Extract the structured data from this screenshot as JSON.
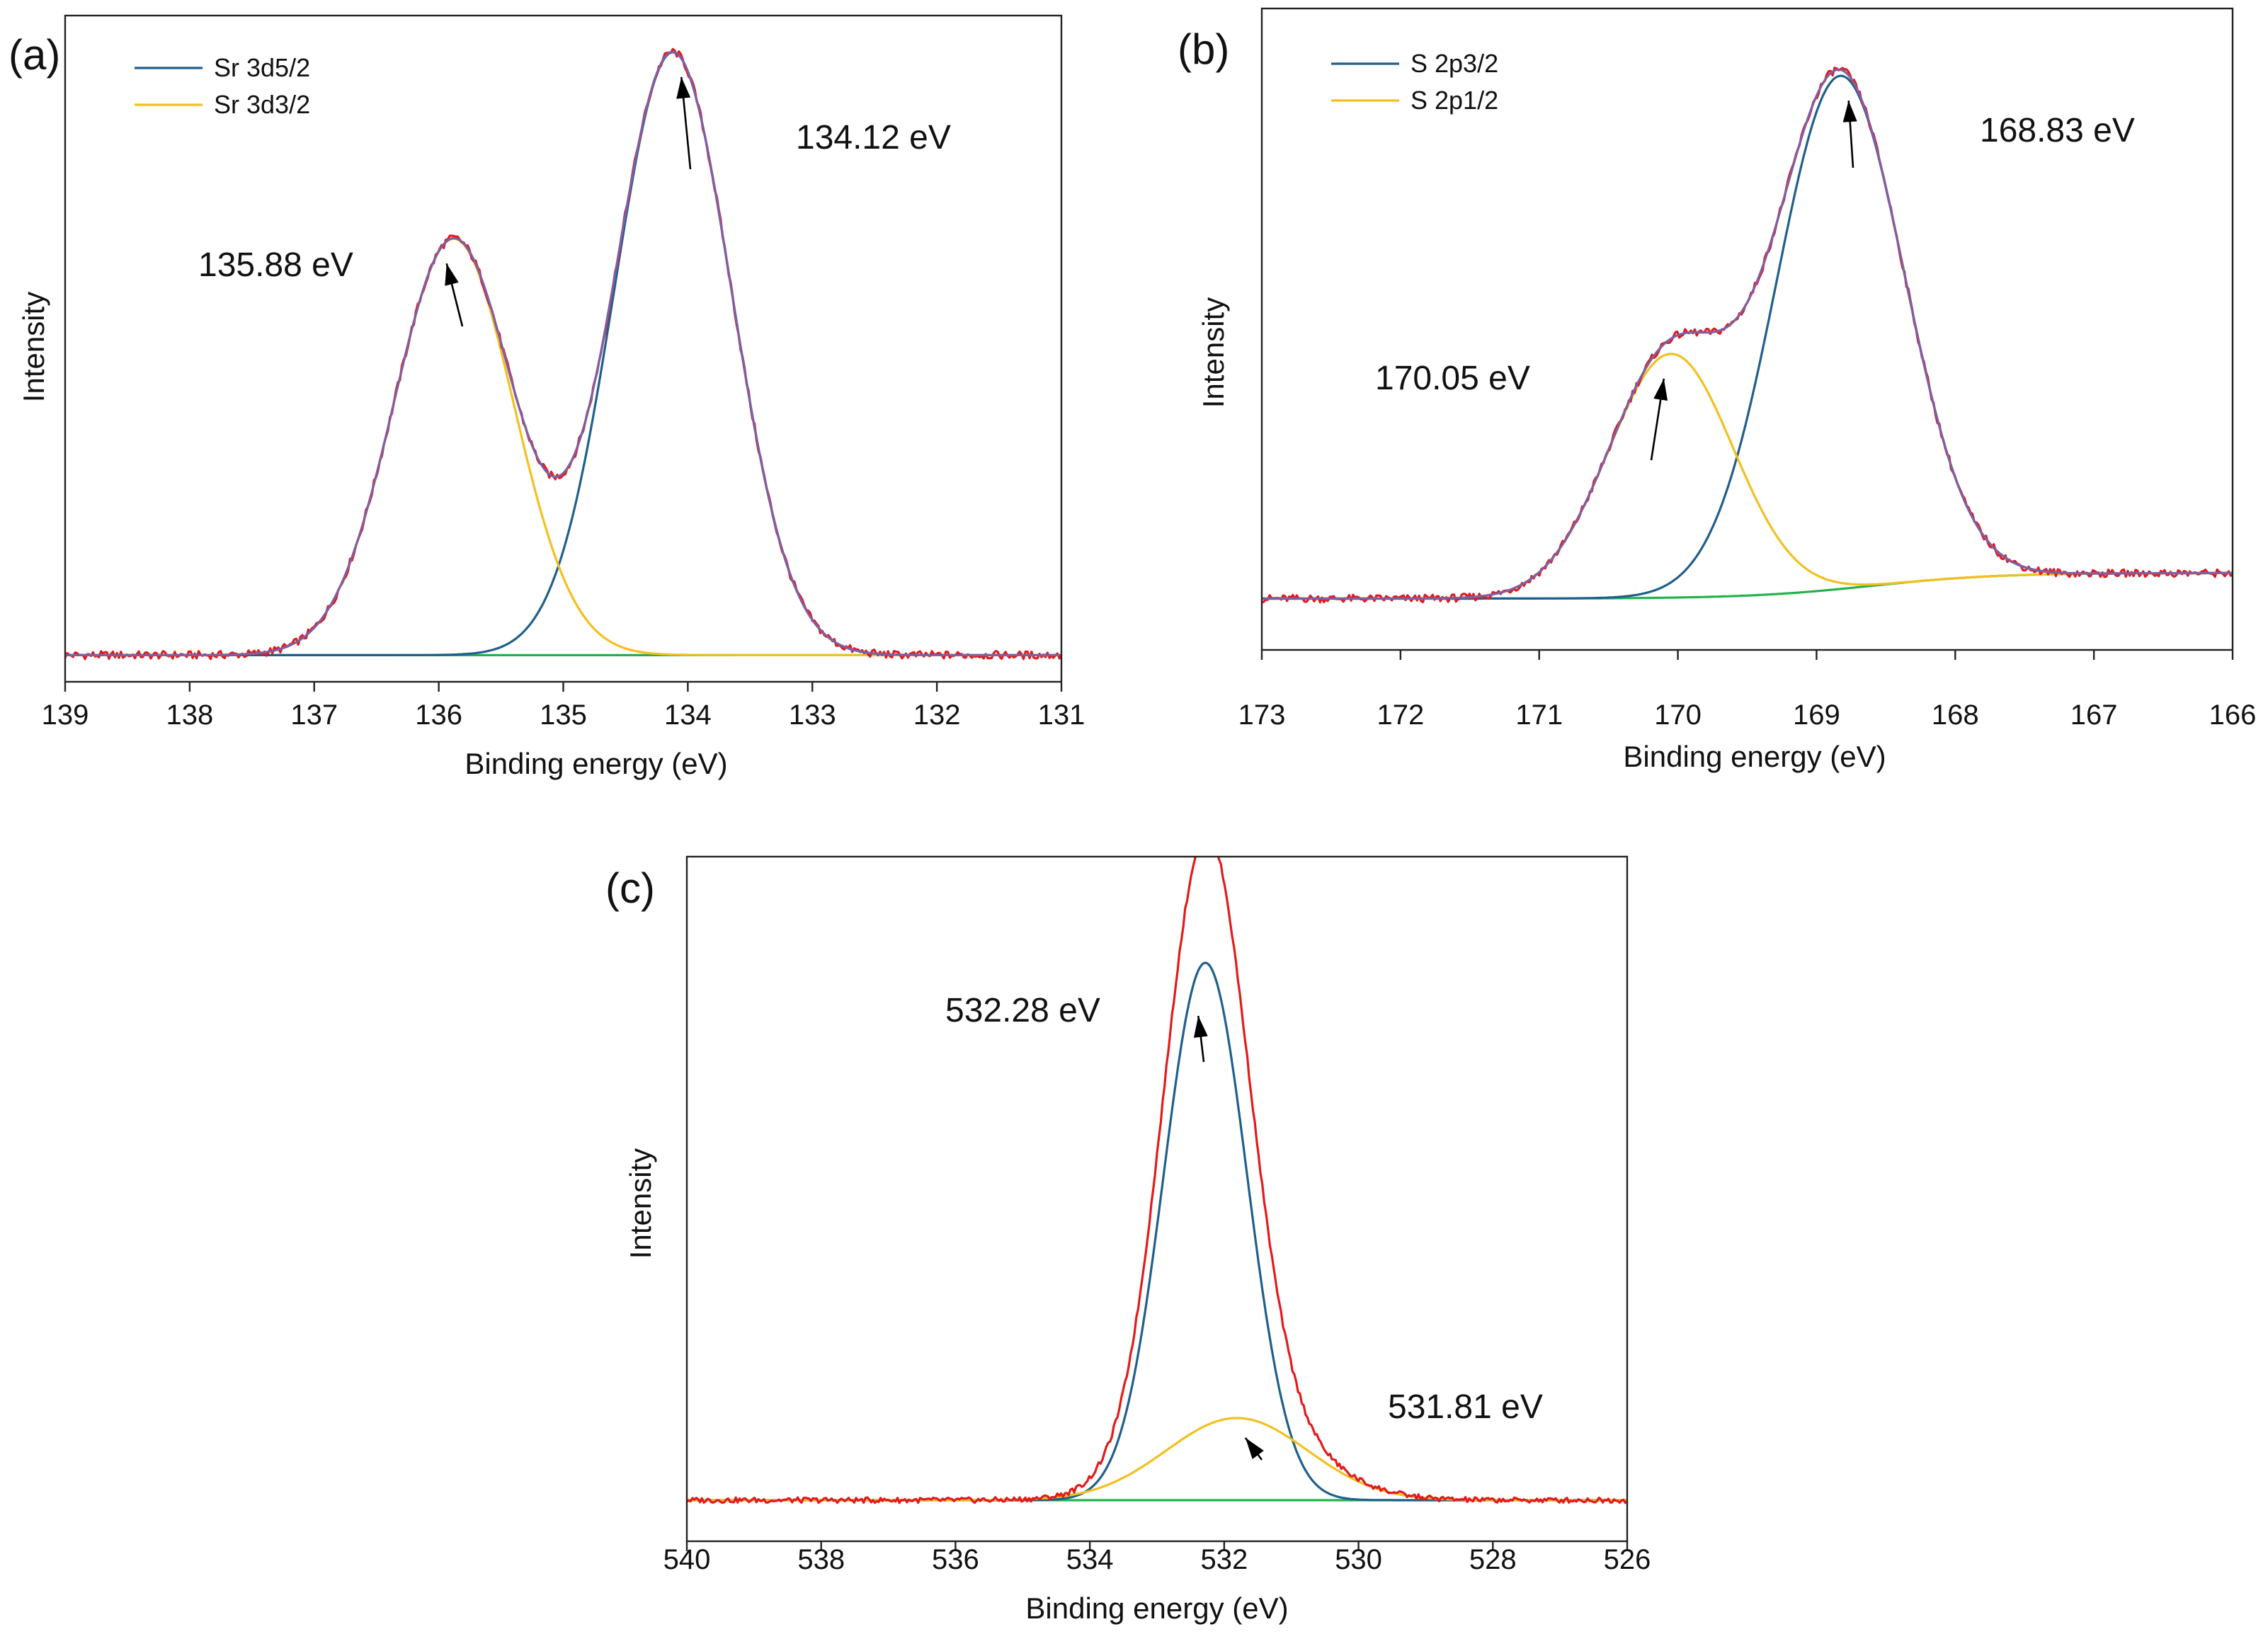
{
  "figure": {
    "colors": {
      "fit_blue": "#1f5f8b",
      "fit_yellow": "#f2c01e",
      "background_green": "#22b24c",
      "raw_red": "#e31a1c",
      "envelope_purple": "#7e5fa3"
    }
  },
  "chart_data": [
    {
      "type": "line",
      "panel_label": "(a)",
      "title": "",
      "xlabel": "Binding energy (eV)",
      "ylabel": "Intensity",
      "xlim": [
        139,
        131
      ],
      "ylim": [
        0,
        1.0
      ],
      "x_reversed": true,
      "xticks": [
        "139",
        "138",
        "137",
        "136",
        "135",
        "134",
        "133",
        "132",
        "131"
      ],
      "grid": false,
      "legend": {
        "position": "top-left",
        "entries": [
          {
            "label": "Sr 3d5/2",
            "color": "#1f5f8b"
          },
          {
            "label": "Sr 3d3/2",
            "color": "#f2c01e"
          }
        ]
      },
      "baseline": 0.04,
      "peaks": [
        {
          "name": "Sr 3d5/2",
          "center": 134.12,
          "amplitude": 0.905,
          "sigma": 0.47,
          "color": "#1f5f8b"
        },
        {
          "name": "Sr 3d3/2",
          "center": 135.88,
          "amplitude": 0.625,
          "sigma": 0.48,
          "color": "#f2c01e"
        }
      ],
      "series": [
        {
          "name": "Sr 3d5/2",
          "role": "component",
          "color": "#1f5f8b"
        },
        {
          "name": "Sr 3d3/2",
          "role": "component",
          "color": "#f2c01e"
        },
        {
          "name": "background",
          "role": "background",
          "color": "#22b24c"
        },
        {
          "name": "raw",
          "role": "raw",
          "color": "#e31a1c"
        },
        {
          "name": "envelope",
          "role": "envelope",
          "color": "#7e5fa3"
        }
      ],
      "annotations": [
        {
          "text": "134.12 eV",
          "x": 134.12
        },
        {
          "text": "135.88 eV",
          "x": 135.88
        }
      ]
    },
    {
      "type": "line",
      "panel_label": "(b)",
      "title": "",
      "xlabel": "Binding energy (eV)",
      "ylabel": "Intensity",
      "xlim": [
        173,
        166
      ],
      "ylim": [
        0,
        1.0
      ],
      "x_reversed": true,
      "xticks": [
        "173",
        "172",
        "171",
        "170",
        "169",
        "168",
        "167",
        "166"
      ],
      "grid": false,
      "legend": {
        "position": "top-left",
        "entries": [
          {
            "label": "S 2p3/2",
            "color": "#1f5f8b"
          },
          {
            "label": "S 2p1/2",
            "color": "#f2c01e"
          }
        ]
      },
      "background": {
        "low": 0.08,
        "high": 0.12,
        "step_center": 168.6,
        "step_width": 0.45
      },
      "peaks": [
        {
          "name": "S 2p3/2",
          "center": 168.83,
          "amplitude": 0.8,
          "sigma": 0.46,
          "color": "#1f5f8b"
        },
        {
          "name": "S 2p1/2",
          "center": 170.05,
          "amplitude": 0.38,
          "sigma": 0.45,
          "color": "#f2c01e"
        }
      ],
      "series": [
        {
          "name": "S 2p3/2",
          "role": "component",
          "color": "#1f5f8b"
        },
        {
          "name": "S 2p1/2",
          "role": "component",
          "color": "#f2c01e"
        },
        {
          "name": "background",
          "role": "background",
          "color": "#22b24c"
        },
        {
          "name": "raw",
          "role": "raw",
          "color": "#e31a1c"
        },
        {
          "name": "envelope",
          "role": "envelope",
          "color": "#7e5fa3"
        }
      ],
      "annotations": [
        {
          "text": "168.83 eV",
          "x": 168.83
        },
        {
          "text": "170.05 eV",
          "x": 170.05
        }
      ]
    },
    {
      "type": "line",
      "panel_label": "(c)",
      "title": "",
      "xlabel": "Binding energy (eV)",
      "ylabel": "Intensity",
      "xlim": [
        540,
        526
      ],
      "ylim": [
        0,
        1.0
      ],
      "x_reversed": true,
      "xticks": [
        "540",
        "538",
        "536",
        "534",
        "532",
        "530",
        "528",
        "526"
      ],
      "grid": false,
      "baseline": 0.06,
      "peaks": [
        {
          "name": "532.28 eV component",
          "center": 532.28,
          "amplitude": 0.785,
          "sigma": 0.62,
          "color": "#1f5f8b"
        },
        {
          "name": "531.81 eV component",
          "center": 531.81,
          "amplitude": 0.12,
          "sigma": 1.05,
          "color": "#f2c01e"
        }
      ],
      "series": [
        {
          "name": "532.28 eV component",
          "role": "component",
          "color": "#1f5f8b"
        },
        {
          "name": "531.81 eV component",
          "role": "component",
          "color": "#f2c01e"
        },
        {
          "name": "background",
          "role": "background",
          "color": "#22b24c"
        },
        {
          "name": "raw",
          "role": "raw",
          "color": "#e31a1c"
        }
      ],
      "annotations": [
        {
          "text": "532.28 eV",
          "x": 532.28
        },
        {
          "text": "531.81 eV",
          "x": 531.81
        }
      ]
    }
  ]
}
